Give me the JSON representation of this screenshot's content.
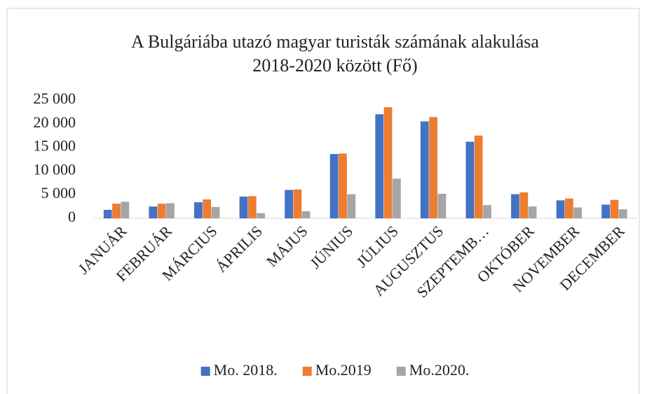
{
  "chart_data": {
    "type": "bar",
    "title": [
      "A  Bulgáriába utazó magyar turisták számának alakulása",
      "2018-2020 között (Fő)"
    ],
    "categories": [
      "JANUÁR",
      "FEBRUÁR",
      "MÁRCIUS",
      "ÁPRILIS",
      "MÁJUS",
      "JÚNIUS",
      "JÚLIUS",
      "AUGUSZTUS",
      "SZEPTEMB…",
      "OKTÓBER",
      "NOVEMBER",
      "DECEMBER"
    ],
    "series": [
      {
        "name": "Mo. 2018.",
        "color": "#4472c4",
        "values": [
          1800,
          2500,
          3400,
          4600,
          6000,
          13600,
          22000,
          20500,
          16200,
          5100,
          3800,
          2900
        ]
      },
      {
        "name": "Mo.2019",
        "color": "#ed7d31",
        "values": [
          3100,
          3100,
          4000,
          4700,
          6100,
          13700,
          23500,
          21400,
          17500,
          5500,
          4200,
          3900
        ]
      },
      {
        "name": "Mo.2020.",
        "color": "#a5a5a5",
        "values": [
          3500,
          3200,
          2400,
          1100,
          1500,
          5100,
          8400,
          5200,
          2800,
          2500,
          2300,
          1900
        ]
      }
    ],
    "ylim": [
      0,
      25000
    ],
    "yticks": [
      0,
      {
        "value": 5000,
        "label": "5 000"
      },
      {
        "value": 10000,
        "label": "10 000"
      },
      {
        "value": 15000,
        "label": "15 000"
      },
      {
        "value": 20000,
        "label": "20 000"
      },
      {
        "value": 25000,
        "label": "25 000"
      }
    ],
    "grid": false,
    "legend": "bottom"
  }
}
